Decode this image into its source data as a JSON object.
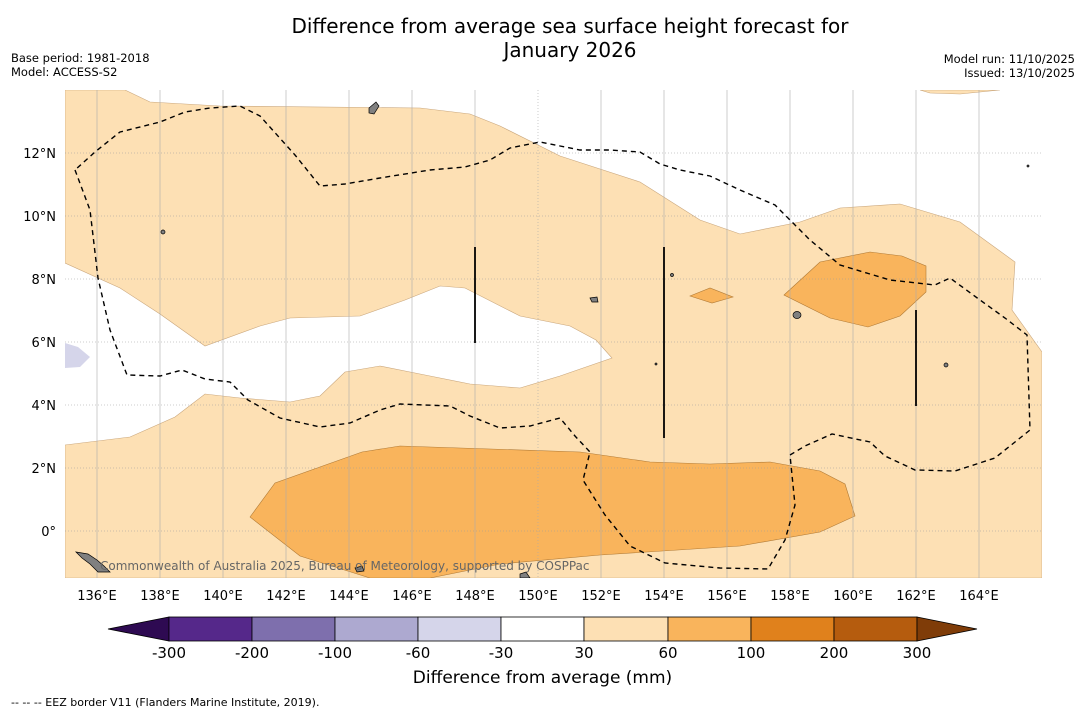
{
  "title_line1": "Difference from average sea surface height forecast for",
  "title_line2": "January 2026",
  "base_period": "Base period: 1981-2018",
  "model": "Model: ACCESS-S2",
  "model_run": "Model run: 11/10/2025",
  "issued": "Issued: 13/10/2025",
  "copyright": "Commonwealth of Australia 2025, Bureau of Meteorology, supported by COSPPac",
  "lon_labels": [
    "136°E",
    "138°E",
    "140°E",
    "142°E",
    "144°E",
    "146°E",
    "148°E",
    "150°E",
    "152°E",
    "154°E",
    "156°E",
    "158°E",
    "160°E",
    "162°E",
    "164°E"
  ],
  "lat_labels": [
    "12°N",
    "10°N",
    "8°N",
    "6°N",
    "4°N",
    "2°N",
    "0°"
  ],
  "colorbar": {
    "title": "Difference from average (mm)",
    "ticks": [
      "-300",
      "-200",
      "-100",
      "-60",
      "-30",
      "30",
      "60",
      "100",
      "200",
      "300"
    ],
    "colors": [
      "#55288a",
      "#7e6fad",
      "#ada9d0",
      "#d5d5ea",
      "#ffffff",
      "#fde0b4",
      "#f9b45c",
      "#e0811c",
      "#b55c0e"
    ],
    "extend_low_color": "#2e0a52",
    "extend_high_color": "#7f3c08"
  },
  "footnote": "-- -- -- EEZ border V11 (Flanders Marine Institute, 2019).",
  "colors": {
    "anomaly_30_60": "#fde0b4",
    "anomaly_60_100": "#f9b45c",
    "anomaly_neg_30_60": "#d5d5ea",
    "land": "#808080"
  }
}
